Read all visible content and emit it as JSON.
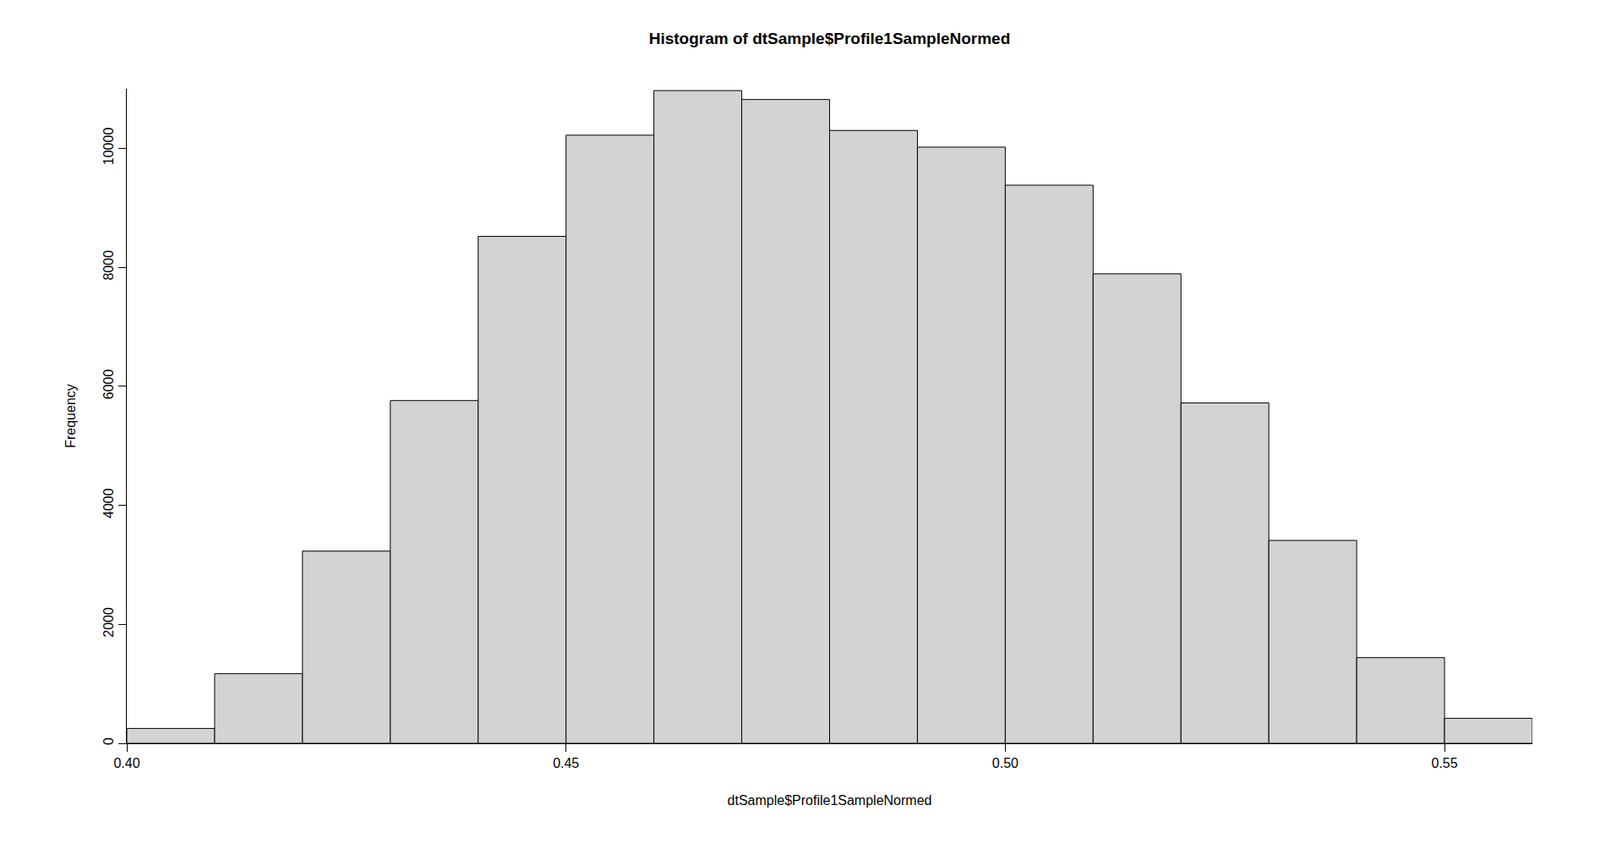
{
  "chart_data": {
    "type": "histogram",
    "title": "Histogram of dtSample$Profile1SampleNormed",
    "x_label": "dtSample$Profile1SampleNormed",
    "y_label": "Frequency",
    "bins": [
      0.4,
      0.41,
      0.42,
      0.43,
      0.44,
      0.45,
      0.46,
      0.47,
      0.48,
      0.49,
      0.5,
      0.51,
      0.52,
      0.53,
      0.54,
      0.55,
      0.56
    ],
    "values": [
      250,
      1170,
      3230,
      5760,
      8520,
      10220,
      10970,
      10820,
      10300,
      10020,
      9380,
      7890,
      5720,
      3410,
      1440,
      420
    ],
    "color": "#d3d3d3",
    "xlim": [
      0.4,
      0.56
    ],
    "xticks": [
      {
        "value": 0.4,
        "label": "0.40"
      },
      {
        "value": 0.45,
        "label": "0.45"
      },
      {
        "value": 0.5,
        "label": "0.50"
      },
      {
        "value": 0.55,
        "label": "0.55"
      }
    ],
    "ylim": [
      0,
      11000
    ],
    "yticks": [
      0,
      2000,
      4000,
      6000,
      8000,
      10000
    ],
    "grid": false
  }
}
